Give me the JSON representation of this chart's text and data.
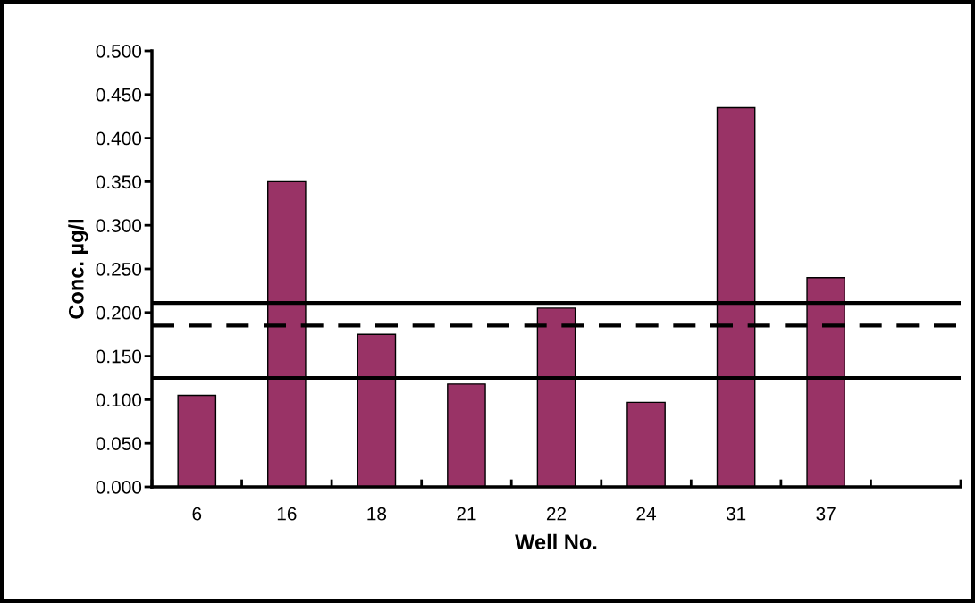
{
  "chart_data": {
    "type": "bar",
    "xlabel": "Well No.",
    "ylabel": "Conc. µg/l",
    "categories": [
      "6",
      "16",
      "18",
      "21",
      "22",
      "24",
      "31",
      "37",
      null
    ],
    "values": [
      0.105,
      0.35,
      0.175,
      0.118,
      0.205,
      0.097,
      0.435,
      0.24,
      null
    ],
    "color": "#993366",
    "ylim": [
      0,
      0.5
    ],
    "yticks": [
      {
        "value": 0,
        "label": "0.000"
      },
      {
        "value": 0.05,
        "label": "0.050"
      },
      {
        "value": 0.1,
        "label": "0.100"
      },
      {
        "value": 0.15,
        "label": "0.150"
      },
      {
        "value": 0.2,
        "label": "0.200"
      },
      {
        "value": 0.25,
        "label": "0.250"
      },
      {
        "value": 0.3,
        "label": "0.300"
      },
      {
        "value": 0.35,
        "label": "0.350"
      },
      {
        "value": 0.4,
        "label": "0.400"
      },
      {
        "value": 0.45,
        "label": "0.450"
      },
      {
        "value": 0.5,
        "label": "0.500"
      }
    ],
    "ref_lines": [
      {
        "axis": "y",
        "value": 0.211,
        "color": "#000000",
        "line_style": "solid"
      },
      {
        "axis": "y",
        "value": 0.185,
        "color": "#000000",
        "line_style": "dashed"
      },
      {
        "axis": "y",
        "value": 0.125,
        "color": "#000000",
        "line_style": "solid"
      }
    ],
    "grid": false,
    "legend": false
  }
}
